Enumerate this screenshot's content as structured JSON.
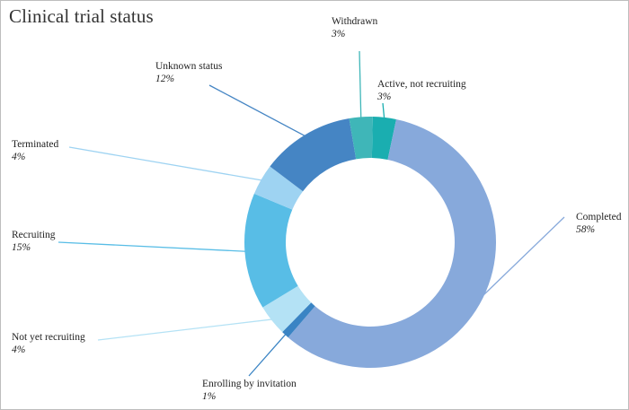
{
  "chart_data": {
    "type": "pie",
    "variant": "donut",
    "title": "Clinical trial status",
    "slices": [
      {
        "label": "Active, not recruiting",
        "value": 3,
        "pct_label": "3%",
        "color": "#1aaeb0"
      },
      {
        "label": "Completed",
        "value": 58,
        "pct_label": "58%",
        "color": "#87a9db"
      },
      {
        "label": "Enrolling by invitation",
        "value": 1,
        "pct_label": "1%",
        "color": "#3a84c4"
      },
      {
        "label": "Not yet recruiting",
        "value": 4,
        "pct_label": "4%",
        "color": "#b4e2f5"
      },
      {
        "label": "Recruiting",
        "value": 15,
        "pct_label": "15%",
        "color": "#58bde6"
      },
      {
        "label": "Terminated",
        "value": 4,
        "pct_label": "4%",
        "color": "#9ed3f2"
      },
      {
        "label": "Unknown status",
        "value": 12,
        "pct_label": "12%",
        "color": "#4585c4"
      },
      {
        "label": "Withdrawn",
        "value": 3,
        "pct_label": "3%",
        "color": "#3fb6b8"
      }
    ],
    "legend": "none"
  }
}
